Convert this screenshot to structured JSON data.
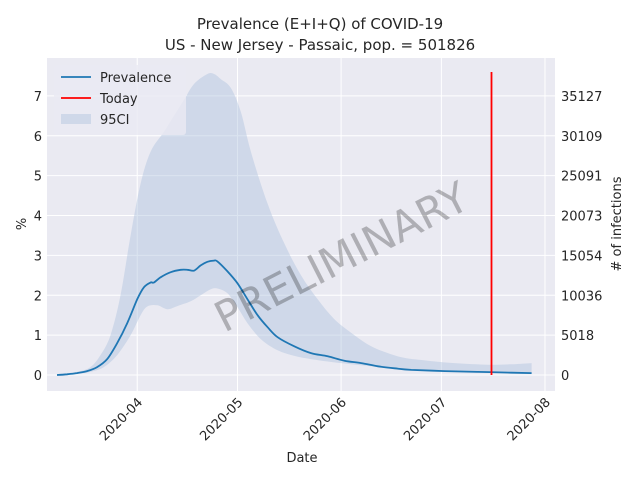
{
  "chart_data": {
    "type": "line",
    "title_line1": "Prevalence (E+I+Q) of COVID-19",
    "title_line2": "US - New Jersey - Passaic, pop. = 501826",
    "xlabel": "Date",
    "ylabel": "%",
    "ylabel_right": "# of infections",
    "watermark": "PRELIMINARY",
    "grid": true,
    "legend_placement": "top-left",
    "x_ticks": [
      "2020-04",
      "2020-05",
      "2020-06",
      "2020-07",
      "2020-08"
    ],
    "y_ticks": [
      "0",
      "1",
      "2",
      "3",
      "4",
      "5",
      "6",
      "7"
    ],
    "y_right_ticks": [
      "0",
      "5018",
      "10036",
      "15054",
      "20073",
      "25091",
      "30109",
      "35127"
    ],
    "xlim": [
      "2020-03-05",
      "2020-08-04"
    ],
    "ylim": [
      -0.4,
      7.95
    ],
    "today": {
      "name": "Today",
      "date": "2020-07-16",
      "y_range": [
        0,
        7.6
      ],
      "color": "#ff0000"
    },
    "series": [
      {
        "name": "Prevalence",
        "color": "#1f77b4",
        "points": [
          [
            "2020-03-08",
            0.0
          ],
          [
            "2020-03-11",
            0.02
          ],
          [
            "2020-03-14",
            0.05
          ],
          [
            "2020-03-17",
            0.1
          ],
          [
            "2020-03-20",
            0.2
          ],
          [
            "2020-03-23",
            0.4
          ],
          [
            "2020-03-26",
            0.8
          ],
          [
            "2020-03-29",
            1.3
          ],
          [
            "2020-04-01",
            1.9
          ],
          [
            "2020-04-03",
            2.2
          ],
          [
            "2020-04-05",
            2.32
          ],
          [
            "2020-04-06",
            2.32
          ],
          [
            "2020-04-08",
            2.45
          ],
          [
            "2020-04-11",
            2.58
          ],
          [
            "2020-04-14",
            2.64
          ],
          [
            "2020-04-16",
            2.64
          ],
          [
            "2020-04-18",
            2.62
          ],
          [
            "2020-04-20",
            2.75
          ],
          [
            "2020-04-22",
            2.84
          ],
          [
            "2020-04-24",
            2.87
          ],
          [
            "2020-04-25",
            2.85
          ],
          [
            "2020-04-28",
            2.6
          ],
          [
            "2020-05-01",
            2.3
          ],
          [
            "2020-05-04",
            1.9
          ],
          [
            "2020-05-07",
            1.5
          ],
          [
            "2020-05-10",
            1.2
          ],
          [
            "2020-05-13",
            0.95
          ],
          [
            "2020-05-18",
            0.72
          ],
          [
            "2020-05-23",
            0.55
          ],
          [
            "2020-05-28",
            0.47
          ],
          [
            "2020-06-02",
            0.36
          ],
          [
            "2020-06-07",
            0.3
          ],
          [
            "2020-06-12",
            0.22
          ],
          [
            "2020-06-17",
            0.17
          ],
          [
            "2020-06-22",
            0.13
          ],
          [
            "2020-07-02",
            0.1
          ],
          [
            "2020-07-12",
            0.08
          ],
          [
            "2020-07-22",
            0.06
          ],
          [
            "2020-07-28",
            0.05
          ]
        ]
      },
      {
        "name": "95CI",
        "color": "#b0c4de",
        "upper": [
          [
            "2020-03-08",
            0.02
          ],
          [
            "2020-03-14",
            0.08
          ],
          [
            "2020-03-18",
            0.2
          ],
          [
            "2020-03-21",
            0.5
          ],
          [
            "2020-03-24",
            1.0
          ],
          [
            "2020-03-27",
            2.0
          ],
          [
            "2020-03-30",
            3.5
          ],
          [
            "2020-04-02",
            4.8
          ],
          [
            "2020-04-05",
            5.6
          ],
          [
            "2020-04-09",
            6.1
          ],
          [
            "2020-04-12",
            6.5
          ],
          [
            "2020-04-15",
            6.9
          ],
          [
            "2020-04-18",
            7.3
          ],
          [
            "2020-04-22",
            7.55
          ],
          [
            "2020-04-24",
            7.55
          ],
          [
            "2020-04-26",
            7.42
          ],
          [
            "2020-04-29",
            7.2
          ],
          [
            "2020-05-02",
            6.6
          ],
          [
            "2020-05-05",
            5.6
          ],
          [
            "2020-05-10",
            4.3
          ],
          [
            "2020-05-15",
            3.3
          ],
          [
            "2020-05-20",
            2.5
          ],
          [
            "2020-05-25",
            1.9
          ],
          [
            "2020-05-30",
            1.4
          ],
          [
            "2020-06-05",
            1.0
          ],
          [
            "2020-06-10",
            0.72
          ],
          [
            "2020-06-15",
            0.55
          ],
          [
            "2020-06-20",
            0.43
          ],
          [
            "2020-06-27",
            0.36
          ],
          [
            "2020-07-05",
            0.3
          ],
          [
            "2020-07-15",
            0.26
          ],
          [
            "2020-07-22",
            0.27
          ],
          [
            "2020-07-28",
            0.3
          ]
        ],
        "lower": [
          [
            "2020-03-08",
            0.0
          ],
          [
            "2020-03-14",
            0.03
          ],
          [
            "2020-03-18",
            0.08
          ],
          [
            "2020-03-22",
            0.2
          ],
          [
            "2020-03-26",
            0.5
          ],
          [
            "2020-03-30",
            1.0
          ],
          [
            "2020-04-02",
            1.5
          ],
          [
            "2020-04-04",
            1.72
          ],
          [
            "2020-04-07",
            1.75
          ],
          [
            "2020-04-10",
            1.65
          ],
          [
            "2020-04-13",
            1.73
          ],
          [
            "2020-04-17",
            1.85
          ],
          [
            "2020-04-20",
            2.0
          ],
          [
            "2020-04-23",
            2.15
          ],
          [
            "2020-04-25",
            2.17
          ],
          [
            "2020-04-28",
            2.05
          ],
          [
            "2020-05-01",
            1.7
          ],
          [
            "2020-05-04",
            1.3
          ],
          [
            "2020-05-08",
            0.9
          ],
          [
            "2020-05-13",
            0.62
          ],
          [
            "2020-05-18",
            0.48
          ],
          [
            "2020-05-23",
            0.4
          ],
          [
            "2020-05-28",
            0.34
          ],
          [
            "2020-06-03",
            0.28
          ],
          [
            "2020-06-10",
            0.22
          ],
          [
            "2020-06-17",
            0.16
          ],
          [
            "2020-06-24",
            0.12
          ],
          [
            "2020-07-03",
            0.09
          ],
          [
            "2020-07-15",
            0.07
          ],
          [
            "2020-07-28",
            0.05
          ]
        ]
      }
    ]
  }
}
